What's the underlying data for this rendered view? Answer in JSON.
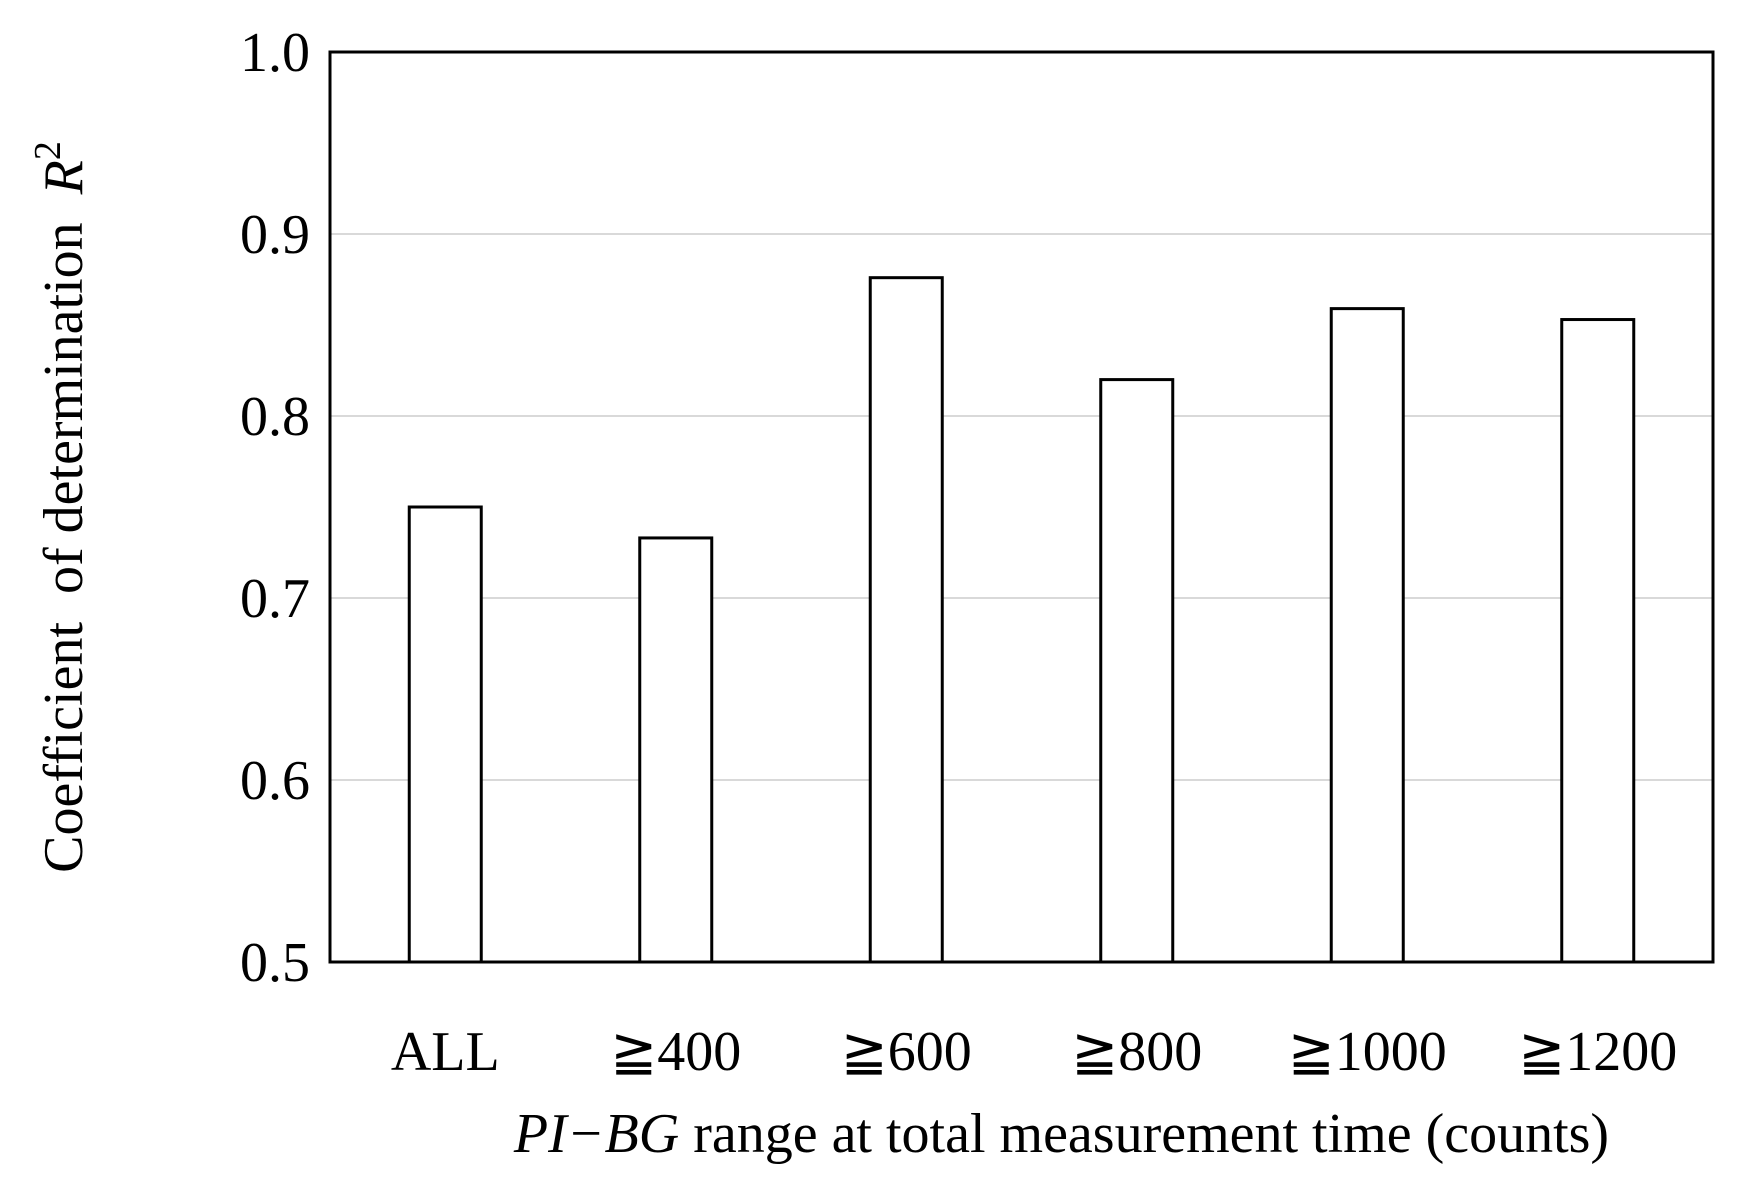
{
  "chart_data": {
    "type": "bar",
    "categories": [
      "ALL",
      "≧400",
      "≧600",
      "≧800",
      "≧1000",
      "≧1200"
    ],
    "series": [
      {
        "values": [
          0.75,
          0.733,
          0.876,
          0.82,
          0.859,
          0.853
        ]
      }
    ],
    "title": "",
    "xlabel": {
      "italic_part": "PI−BG",
      "rest": " range at total measurement time (counts)"
    },
    "ylabel": {
      "main": "Coefficient  of determination  ",
      "symbol": "R",
      "superscript": "2"
    },
    "ylim": [
      0.5,
      1.0
    ],
    "yticks": [
      "0.5",
      "0.6",
      "0.7",
      "0.8",
      "0.9",
      "1.0"
    ],
    "grid": "horizontal",
    "legend": "none",
    "bar_fill": "#ffffff",
    "bar_stroke": "#000000",
    "grid_color": "#d9d9d9"
  }
}
